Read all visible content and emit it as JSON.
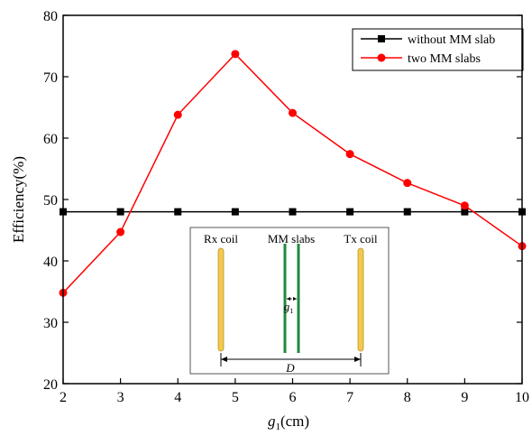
{
  "chart_data": {
    "type": "line",
    "x": [
      2,
      3,
      4,
      5,
      6,
      7,
      8,
      9,
      10
    ],
    "xlabel": {
      "main": "g",
      "sub": "1",
      "unit": "(cm)"
    },
    "ylabel": "Efficiency(%)",
    "xlim": [
      2,
      10
    ],
    "ylim": [
      20,
      80
    ],
    "xticks": [
      "2",
      "3",
      "4",
      "5",
      "6",
      "7",
      "8",
      "9",
      "10"
    ],
    "yticks": [
      "20",
      "30",
      "40",
      "50",
      "60",
      "70",
      "80"
    ],
    "grid": false,
    "legend_position": "top-right",
    "series": [
      {
        "name": "without MM slab",
        "color": "#000000",
        "marker": "square",
        "values": [
          48,
          48,
          48,
          48,
          48,
          48,
          48,
          48,
          48
        ]
      },
      {
        "name": "two MM slabs",
        "color": "#ff0000",
        "marker": "circle",
        "values": [
          34.8,
          44.7,
          63.8,
          73.7,
          64.1,
          57.4,
          52.7,
          49.0,
          42.4
        ]
      }
    ],
    "inset": {
      "rx_label": "Rx coil",
      "mm_label": "MM slabs",
      "tx_label": "Tx coil",
      "gap_label": "g",
      "gap_sub": "1",
      "distance_label": "D",
      "coil_color": "#f2c94c",
      "slab_color": "#1f8a3a"
    }
  }
}
